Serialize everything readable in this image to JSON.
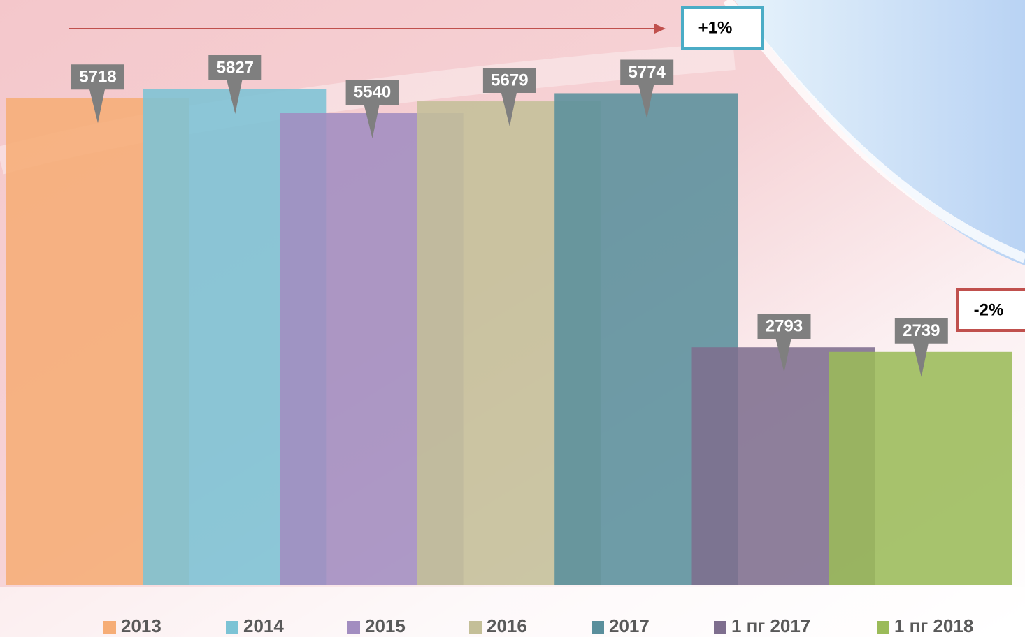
{
  "chart_data": {
    "type": "bar",
    "categories": [
      null
    ],
    "series": [
      {
        "name": "2013",
        "color": "#f6ad76",
        "values": [
          5718
        ]
      },
      {
        "name": "2014",
        "color": "#7cc3d5",
        "values": [
          5827
        ]
      },
      {
        "name": "2015",
        "color": "#a28dc0",
        "values": [
          5540
        ]
      },
      {
        "name": "2016",
        "color": "#c4bf98",
        "values": [
          5679
        ]
      },
      {
        "name": "2017",
        "color": "#5a8f9c",
        "values": [
          5774
        ]
      },
      {
        "name": "1 пг 2017",
        "color": "#7e6e8e",
        "values": [
          2793
        ]
      },
      {
        "name": "1 пг 2018",
        "color": "#9bbb59",
        "values": [
          2739
        ]
      }
    ],
    "annotations": [
      "+1%",
      "-2%"
    ],
    "legend": "bottom"
  }
}
